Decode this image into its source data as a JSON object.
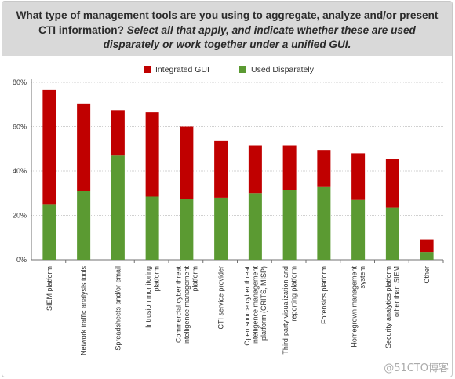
{
  "title": {
    "question": "What type of management tools are you using to aggregate, analyze and/or present CTI information?",
    "instruction": "Select all that apply, and indicate whether these are used disparately or work together under a unified GUI."
  },
  "watermark": "@51CTO博客",
  "colors": {
    "integrated": "#c00000",
    "disparate": "#5b9a32",
    "grid": "#d0d0d0",
    "axis": "#707070"
  },
  "chart_data": {
    "type": "bar",
    "stacked": true,
    "categories": [
      "SIEM platform",
      "Network traffic analysis tools",
      "Spreadsheets and/or email",
      "Intrusion monitoring platform",
      "Commercial cyber threat intelligence management platform",
      "CTI service provider",
      "Open source cyber threat intelligence management platform (CRITS, MISP)",
      "Third-party visualization and reporting platform",
      "Forensics platform",
      "Homegrown management system",
      "Security analytics platform other than SIEM",
      "Other"
    ],
    "category_lines": [
      [
        "SIEM platform"
      ],
      [
        "Network traffic analysis tools"
      ],
      [
        "Spreadsheets and/or email"
      ],
      [
        "Intrusion monitoring",
        "platform"
      ],
      [
        "Commercial cyber threat",
        "intelligence management",
        "platform"
      ],
      [
        "CTI service provider"
      ],
      [
        "Open source cyber threat",
        "intelligence management",
        "platform (CRITS, MISP)"
      ],
      [
        "Third-party visualization and",
        "reporting platform"
      ],
      [
        "Forensics platform"
      ],
      [
        "Homegrown management",
        "system"
      ],
      [
        "Security analytics platform",
        "other than SIEM"
      ],
      [
        "Other"
      ]
    ],
    "series": [
      {
        "name": "Used Disparately",
        "values": [
          25.0,
          31.0,
          47.0,
          28.5,
          27.5,
          28.0,
          30.0,
          31.5,
          33.0,
          27.0,
          23.5,
          3.5
        ]
      },
      {
        "name": "Integrated GUI",
        "values": [
          51.5,
          39.5,
          20.5,
          38.0,
          32.5,
          25.5,
          21.5,
          20.0,
          16.5,
          21.0,
          22.0,
          5.5
        ]
      }
    ],
    "legend": [
      {
        "name": "Integrated GUI",
        "color": "#c00000"
      },
      {
        "name": "Used Disparately",
        "color": "#5b9a32"
      }
    ],
    "legend_position": "top-center",
    "yticks": [
      "0%",
      "20%",
      "40%",
      "60%",
      "80%"
    ],
    "ylim": [
      0,
      80
    ],
    "grid": true
  }
}
